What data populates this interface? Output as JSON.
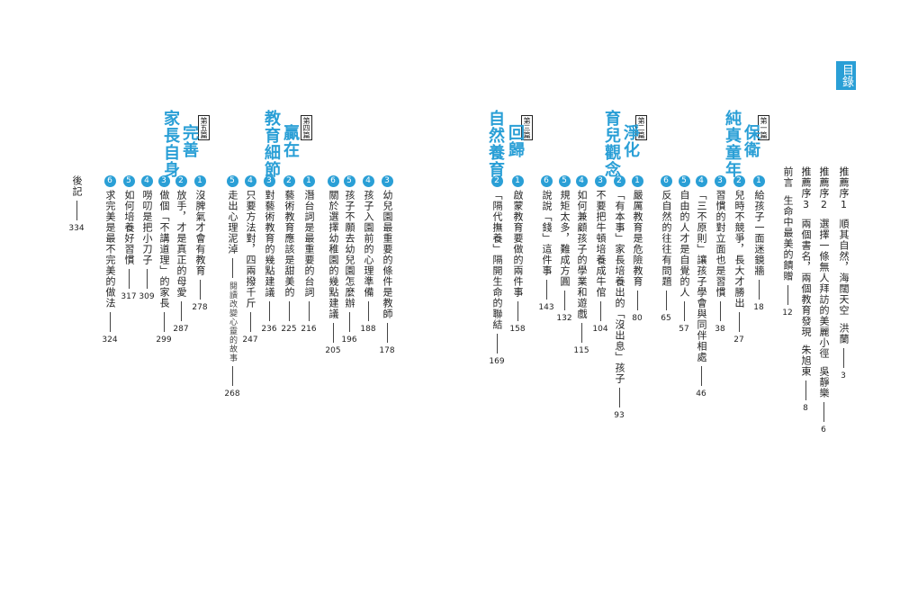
{
  "toc_label": "目錄",
  "front": [
    {
      "label": "推薦序1",
      "title": "順其自然，海闊天空",
      "author": "洪蘭",
      "page": 3
    },
    {
      "label": "推薦序2",
      "title": "選擇一條無人拜訪的美麗小徑",
      "author": "吳靜樂",
      "page": 6
    },
    {
      "label": "推薦序3",
      "title": "兩個書名，兩個教育發現",
      "author": "朱旭東",
      "page": 8
    },
    {
      "label": "前言",
      "title": "生命中最美的饋贈",
      "page": 12
    }
  ],
  "parts": [
    {
      "label": "第一篇",
      "title": [
        "保衛",
        "純真童年"
      ],
      "chapters": [
        {
          "num": "1",
          "title": "給孩子一面迷鏡牆",
          "page": 18
        },
        {
          "num": "2",
          "title": "兒時不競爭，長大才勝出",
          "page": 27
        },
        {
          "num": "3",
          "title": "習慣的對立面也是習慣",
          "page": 38
        },
        {
          "num": "4",
          "title": "「三不原則」讓孩子學會與同伴相處",
          "page": 46
        },
        {
          "num": "5",
          "title": "自由的人才是自覺的人",
          "page": 57
        },
        {
          "num": "6",
          "title": "反自然的往往有問題",
          "page": 65
        }
      ]
    },
    {
      "label": "第二篇",
      "title": [
        "淨化",
        "育兒觀念"
      ],
      "chapters": [
        {
          "num": "1",
          "title": "嚴厲教育是危險教育",
          "page": 80
        },
        {
          "num": "2",
          "title": "「有本事」家長培養出的「沒出息」孩子",
          "page": 93
        },
        {
          "num": "3",
          "title": "不要把牛頓培養成牛倌",
          "page": 104
        },
        {
          "num": "4",
          "title": "如何兼顧孩子的學業和遊戲",
          "page": 115
        },
        {
          "num": "5",
          "title": "規矩太多，難成方圓",
          "page": 132
        },
        {
          "num": "6",
          "title": "說說「錢」這件事",
          "page": 143
        }
      ]
    },
    {
      "label": "第三篇",
      "title": [
        "回歸",
        "自然養育"
      ],
      "chapters": [
        {
          "num": "1",
          "title": "啟蒙教育要做的兩件事",
          "page": 158
        },
        {
          "num": "2",
          "title": "「隔代撫養」隔開生命的聯結",
          "page": 169
        },
        {
          "num": "3",
          "title": "幼兒園最重要的條件是教師",
          "page": 178
        },
        {
          "num": "4",
          "title": "孩子入園前的心理準備",
          "page": 188
        },
        {
          "num": "5",
          "title": "孩子不願去幼兒園怎麼辦",
          "page": 196
        },
        {
          "num": "6",
          "title": "關於選擇幼稚園的幾點建議",
          "page": 205
        }
      ]
    },
    {
      "label": "第四篇",
      "title": [
        "贏在",
        "教育細節"
      ],
      "chapters": [
        {
          "num": "1",
          "title": "潛台詞是最重要的台詞",
          "page": 216
        },
        {
          "num": "2",
          "title": "藝術教育應該是甜美的",
          "page": 225
        },
        {
          "num": "3",
          "title": "對藝術教育的幾點建議",
          "page": 236
        },
        {
          "num": "4",
          "title": "只要方法對，四兩撥千斤",
          "page": 247
        },
        {
          "num": "5",
          "title": "走出心理泥淖",
          "sub": "閱讀改變心靈的故事",
          "page": 268
        }
      ]
    },
    {
      "label": "第五篇",
      "title": [
        "完善",
        "家長自身"
      ],
      "chapters": [
        {
          "num": "1",
          "title": "沒脾氣才會有教育",
          "page": 278
        },
        {
          "num": "2",
          "title": "放手，才是真正的母愛",
          "page": 287
        },
        {
          "num": "3",
          "title": "做個「不講道理」的家長",
          "page": 299
        },
        {
          "num": "4",
          "title": "嘮叨是把小刀子",
          "page": 309
        },
        {
          "num": "5",
          "title": "如何培養好習慣",
          "page": 317
        },
        {
          "num": "6",
          "title": "求完美是最不完美的做法",
          "page": 324
        }
      ]
    }
  ],
  "afterword": {
    "title": "後記",
    "page": 334
  }
}
